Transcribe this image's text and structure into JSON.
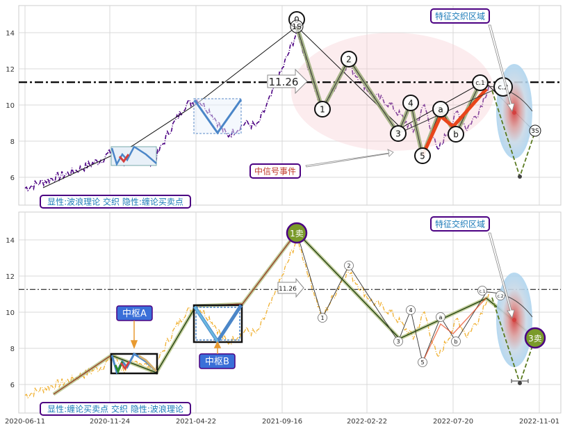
{
  "chart_data": [
    {
      "type": "line",
      "panel": "top",
      "xlabels": [
        "2020-06-11",
        "2020-11-24",
        "2021-04-22",
        "2021-09-16",
        "2022-02-22",
        "2022-07-20",
        "2022-11-01"
      ],
      "yticks": [
        6,
        8,
        10,
        12,
        14
      ],
      "ylim": [
        4.4,
        15.5
      ],
      "grid": true,
      "ref_line_value": 11.26,
      "ref_label": "11.26",
      "wave_points": [
        {
          "x": "2021-09-16",
          "y": 14.2,
          "label": "1S"
        },
        {
          "x": "2021-10-28",
          "y": 9.6,
          "label": "1"
        },
        {
          "x": "2021-12-10",
          "y": 12.3,
          "label": "2"
        },
        {
          "x": "2022-04-01",
          "y": 8.6,
          "label": "3"
        },
        {
          "x": "2022-04-20",
          "y": 10.0,
          "label": "4"
        },
        {
          "x": "2022-05-12",
          "y": 7.4,
          "label": "5"
        },
        {
          "x": "2022-06-15",
          "y": 9.6,
          "label": "a"
        },
        {
          "x": "2022-07-01",
          "y": 8.7,
          "label": "b"
        },
        {
          "x": "2022-08-08",
          "y": 11.1,
          "label": "c.1"
        },
        {
          "x": "2022-09-01",
          "y": 10.9,
          "label": "c.2"
        },
        {
          "x": "2022-10-01",
          "y": 8.4,
          "label": "3S"
        }
      ],
      "top_marker": "0",
      "annotations": {
        "legend_box": "显性:波浪理论 交织 隐性:缠论买卖点",
        "mid_event": "中信号事件",
        "feature_zone": "特征交织区域"
      },
      "colors": {
        "price": "#4b0082",
        "ref": "#000000",
        "wave": "#9aab77",
        "impulse": "#e8451a",
        "blue": "#4b86c8"
      }
    },
    {
      "type": "line",
      "panel": "bottom",
      "xlabels": [
        "2020-06-11",
        "2020-11-24",
        "2021-04-22",
        "2021-09-16",
        "2022-02-22",
        "2022-07-20",
        "2022-11-01"
      ],
      "yticks": [
        6,
        8,
        10,
        12,
        14
      ],
      "ylim": [
        4.4,
        15.5
      ],
      "grid": true,
      "ref_line_value": 11.26,
      "ref_label": "11.26",
      "wave_points": [
        {
          "label": "1"
        },
        {
          "label": "2"
        },
        {
          "label": "3"
        },
        {
          "label": "4"
        },
        {
          "label": "5"
        },
        {
          "label": "a"
        },
        {
          "label": "b"
        },
        {
          "label": "c.1"
        },
        {
          "label": "c.2"
        }
      ],
      "annotations": {
        "legend_box": "显性:缠论买卖点 交织 隐性:波浪理论",
        "sell1": "1卖",
        "sell3": "3卖",
        "pivotA": "中枢A",
        "pivotB": "中枢B",
        "feature_zone": "特征交织区域"
      },
      "colors": {
        "price": "#f0b030",
        "ref": "#000000",
        "stroke": "#2a5a10",
        "sell": "#7a9a2a",
        "pivot": "#3a6fd8"
      }
    }
  ]
}
